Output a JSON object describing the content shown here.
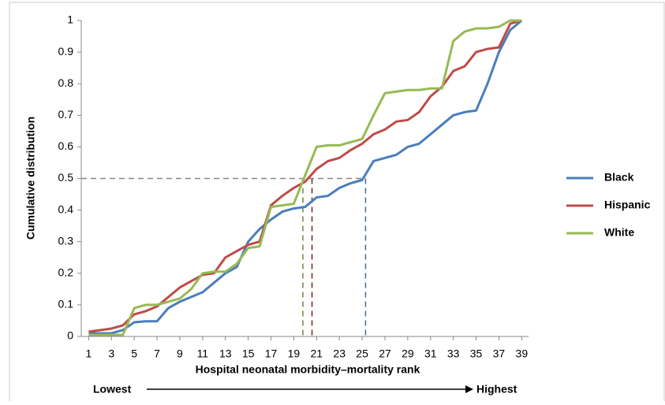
{
  "chart_data": {
    "type": "line",
    "xlabel": "Hospital neonatal morbidity–mortality rank",
    "ylabel": "Cumulative distribution",
    "low_label": "Lowest",
    "high_label": "Highest",
    "x": [
      1,
      2,
      3,
      4,
      5,
      6,
      7,
      8,
      9,
      10,
      11,
      12,
      13,
      14,
      15,
      16,
      17,
      18,
      19,
      20,
      21,
      22,
      23,
      24,
      25,
      26,
      27,
      28,
      29,
      30,
      31,
      32,
      33,
      34,
      35,
      36,
      37,
      38,
      39
    ],
    "series": [
      {
        "name": "Black",
        "color": "#4a7ebb",
        "median_rank": 25.3,
        "values": [
          0.01,
          0.01,
          0.01,
          0.02,
          0.045,
          0.048,
          0.048,
          0.09,
          0.11,
          0.125,
          0.14,
          0.17,
          0.2,
          0.22,
          0.3,
          0.34,
          0.37,
          0.395,
          0.405,
          0.41,
          0.44,
          0.445,
          0.47,
          0.485,
          0.495,
          0.555,
          0.565,
          0.575,
          0.6,
          0.61,
          0.64,
          0.67,
          0.7,
          0.71,
          0.715,
          0.8,
          0.9,
          0.97,
          1
        ]
      },
      {
        "name": "Hispanic",
        "color": "#be4b48",
        "median_rank": 20.6,
        "values": [
          0.015,
          0.02,
          0.025,
          0.035,
          0.07,
          0.08,
          0.095,
          0.125,
          0.155,
          0.175,
          0.195,
          0.2,
          0.25,
          0.27,
          0.29,
          0.3,
          0.415,
          0.445,
          0.47,
          0.49,
          0.53,
          0.555,
          0.565,
          0.59,
          0.61,
          0.64,
          0.655,
          0.68,
          0.685,
          0.71,
          0.76,
          0.79,
          0.84,
          0.855,
          0.9,
          0.91,
          0.915,
          0.99,
          1
        ]
      },
      {
        "name": "White",
        "color": "#98b954",
        "median_rank": 19.8,
        "values": [
          0.005,
          0.005,
          0.005,
          0.005,
          0.09,
          0.1,
          0.1,
          0.11,
          0.12,
          0.15,
          0.2,
          0.205,
          0.205,
          0.23,
          0.28,
          0.285,
          0.41,
          0.415,
          0.42,
          0.51,
          0.6,
          0.605,
          0.605,
          0.615,
          0.625,
          0.7,
          0.77,
          0.775,
          0.78,
          0.78,
          0.785,
          0.785,
          0.935,
          0.965,
          0.975,
          0.975,
          0.98,
          1,
          1
        ]
      }
    ],
    "reference_y": 0.5,
    "xlim": [
      0.35,
      39.6
    ],
    "xticks": [
      1,
      3,
      5,
      7,
      9,
      11,
      13,
      15,
      17,
      19,
      21,
      23,
      25,
      27,
      29,
      31,
      33,
      35,
      37,
      39
    ],
    "ylim": [
      0,
      1
    ],
    "yticks": [
      0,
      0.1,
      0.2,
      0.3,
      0.4,
      0.5,
      0.6,
      0.7,
      0.8,
      0.9,
      1
    ],
    "legend": "right"
  }
}
